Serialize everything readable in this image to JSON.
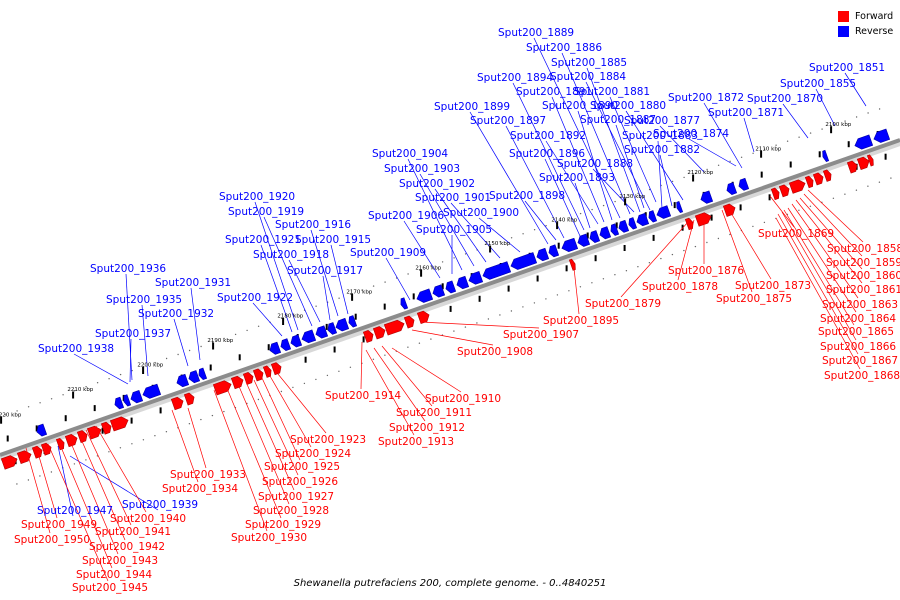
{
  "caption": "Shewanella putrefaciens 200, complete genome. - 0..4840251",
  "legend": [
    {
      "label": "Forward",
      "color": "#ff0000"
    },
    {
      "label": "Reverse",
      "color": "#0000ff"
    }
  ],
  "colors": {
    "forward": "#ff0000",
    "reverse": "#0000ff",
    "forward_dark": "#b00000",
    "reverse_dark": "#0000a8",
    "backbone": "#8c8c8c"
  },
  "scale_labels": [
    "2100 kbp",
    "2110 kbp",
    "2120 kbp",
    "2130 kbp",
    "2140 kbp",
    "2150 kbp",
    "2160 kbp",
    "2170 kbp",
    "2180 kbp",
    "2190 kbp",
    "2200 kbp",
    "2210 kbp",
    "2220 kbp"
  ],
  "reverse_genes": [
    "Sput200_1851",
    "Sput200_1855",
    "Sput200_1870",
    "Sput200_1871",
    "Sput200_1872",
    "Sput200_1874",
    "Sput200_1877",
    "Sput200_1880",
    "Sput200_1881",
    "Sput200_1882",
    "Sput200_1883",
    "Sput200_1884",
    "Sput200_1885",
    "Sput200_1886",
    "Sput200_1887",
    "Sput200_1888",
    "Sput200_1889",
    "Sput200_1890",
    "Sput200_1891",
    "Sput200_1892",
    "Sput200_1893",
    "Sput200_1894",
    "Sput200_1896",
    "Sput200_1897",
    "Sput200_1898",
    "Sput200_1899",
    "Sput200_1900",
    "Sput200_1901",
    "Sput200_1902",
    "Sput200_1903",
    "Sput200_1904",
    "Sput200_1905",
    "Sput200_1906",
    "Sput200_1909",
    "Sput200_1915",
    "Sput200_1916",
    "Sput200_1917",
    "Sput200_1918",
    "Sput200_1919",
    "Sput200_1920",
    "Sput200_1921",
    "Sput200_1922",
    "Sput200_1931",
    "Sput200_1932",
    "Sput200_1935",
    "Sput200_1936",
    "Sput200_1937",
    "Sput200_1938",
    "Sput200_1939",
    "Sput200_1947"
  ],
  "forward_genes": [
    "Sput200_1858",
    "Sput200_1859",
    "Sput200_1860",
    "Sput200_1861",
    "Sput200_1863",
    "Sput200_1864",
    "Sput200_1865",
    "Sput200_1866",
    "Sput200_1867",
    "Sput200_1868",
    "Sput200_1869",
    "Sput200_1873",
    "Sput200_1875",
    "Sput200_1876",
    "Sput200_1878",
    "Sput200_1879",
    "Sput200_1895",
    "Sput200_1907",
    "Sput200_1908",
    "Sput200_1910",
    "Sput200_1911",
    "Sput200_1912",
    "Sput200_1913",
    "Sput200_1914",
    "Sput200_1923",
    "Sput200_1924",
    "Sput200_1925",
    "Sput200_1926",
    "Sput200_1927",
    "Sput200_1928",
    "Sput200_1929",
    "Sput200_1930",
    "Sput200_1933",
    "Sput200_1934",
    "Sput200_1940",
    "Sput200_1941",
    "Sput200_1942",
    "Sput200_1943",
    "Sput200_1944",
    "Sput200_1945",
    "Sput200_1949",
    "Sput200_1950"
  ]
}
